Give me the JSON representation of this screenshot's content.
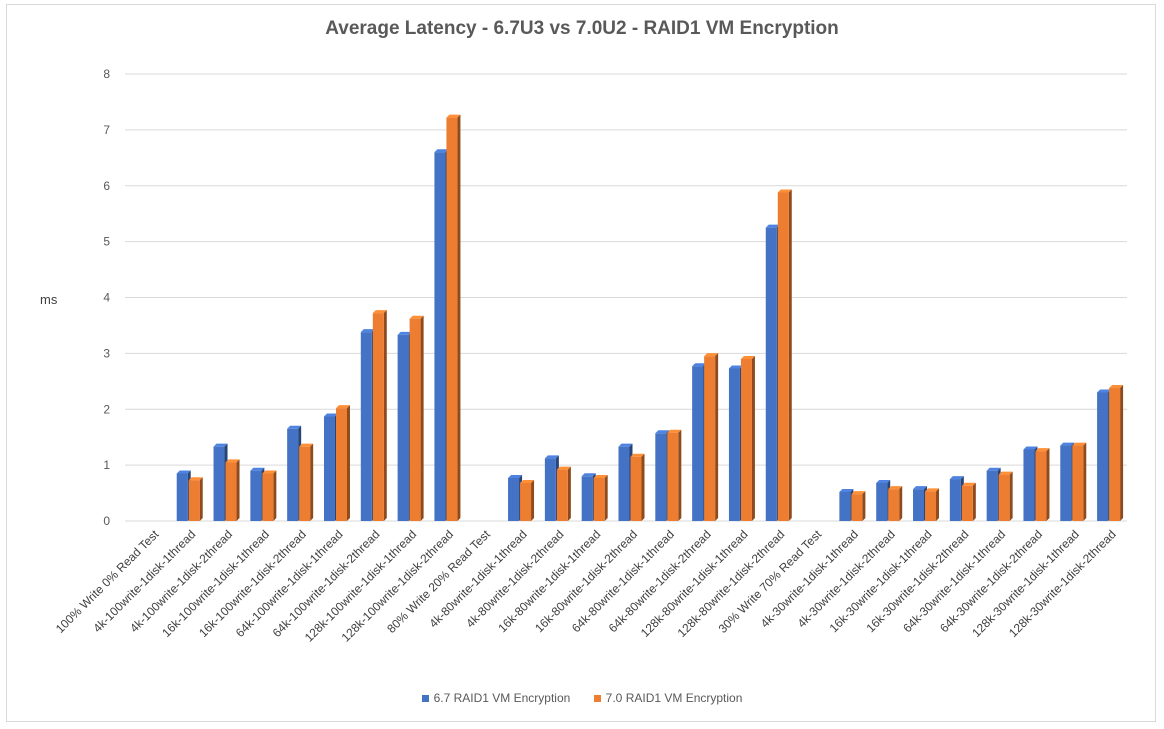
{
  "chart_data": {
    "type": "bar",
    "title": "Average Latency - 6.7U3 vs 7.0U2 - RAID1 VM Encryption",
    "ylabel": "ms",
    "xlabel": "",
    "ylim": [
      0,
      8
    ],
    "yticks": [
      0,
      1,
      2,
      3,
      4,
      5,
      6,
      7,
      8
    ],
    "grid": true,
    "legend_position": "bottom",
    "categories": [
      "100% Write 0% Read Test",
      "4k-100write-1disk-1thread",
      "4k-100write-1disk-2thread",
      "16k-100write-1disk-1thread",
      "16k-100write-1disk-2thread",
      "64k-100write-1disk-1thread",
      "64k-100write-1disk-2thread",
      "128k-100write-1disk-1thread",
      "128k-100write-1disk-2thread",
      "80% Write 20% Read Test",
      "4k-80write-1disk-1thread",
      "4k-80write-1disk-2thread",
      "16k-80write-1disk-1thread",
      "16k-80write-1disk-2thread",
      "64k-80write-1disk-1thread",
      "64k-80write-1disk-2thread",
      "128k-80write-1disk-1thread",
      "128k-80write-1disk-2thread",
      "30% Write 70% Read Test",
      "4k-30write-1disk-1thread",
      "4k-30write-1disk-2thread",
      "16k-30write-1disk-1thread",
      "16k-30write-1disk-2thread",
      "64k-30write-1disk-1thread",
      "64k-30write-1disk-2thread",
      "128k-30write-1disk-1thread",
      "128k-30write-1disk-2thread"
    ],
    "series": [
      {
        "name": "6.7 RAID1 VM Encryption",
        "color": "#4472c4",
        "values": [
          null,
          0.85,
          1.33,
          0.9,
          1.65,
          1.87,
          3.38,
          3.33,
          6.6,
          null,
          0.77,
          1.12,
          0.8,
          1.33,
          1.57,
          2.77,
          2.73,
          5.25,
          null,
          0.52,
          0.68,
          0.57,
          0.75,
          0.9,
          1.28,
          1.35,
          2.3
        ]
      },
      {
        "name": "7.0 RAID1 VM Encryption",
        "color": "#ed7d31",
        "values": [
          null,
          0.73,
          1.05,
          0.85,
          1.33,
          2.02,
          3.72,
          3.62,
          7.22,
          null,
          0.68,
          0.92,
          0.77,
          1.15,
          1.58,
          2.95,
          2.9,
          5.88,
          null,
          0.48,
          0.57,
          0.53,
          0.63,
          0.83,
          1.25,
          1.35,
          2.38
        ]
      }
    ]
  }
}
